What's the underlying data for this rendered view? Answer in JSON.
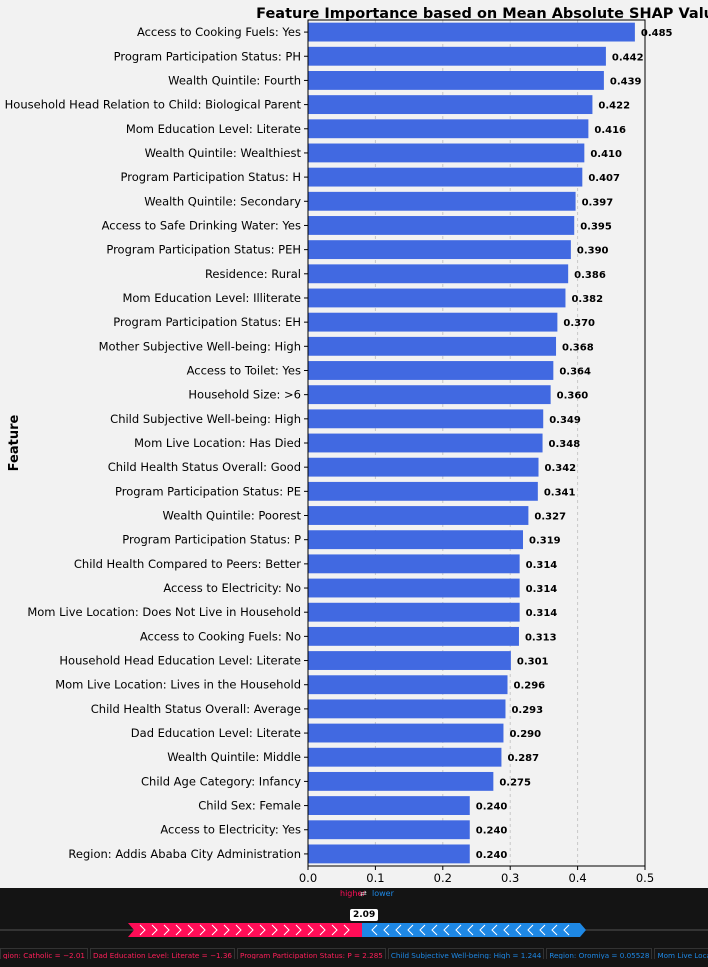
{
  "chart_data": {
    "type": "bar",
    "orientation": "horizontal",
    "title": "Feature Importance based on Mean Absolute SHAP Value",
    "xlabel": "",
    "ylabel": "Feature",
    "xlim": [
      0,
      0.5
    ],
    "xticks": [
      "0.0",
      "0.1",
      "0.2",
      "0.3",
      "0.4",
      "0.5"
    ],
    "grid": true,
    "bar_color": "#4169e1",
    "categories": [
      "Access to Cooking Fuels: Yes",
      "Program Participation Status: PH",
      "Wealth Quintile: Fourth",
      "Household Head Relation to Child: Biological Parent",
      "Mom Education Level: Literate",
      "Wealth Quintile: Wealthiest",
      "Program Participation Status: H",
      "Wealth Quintile: Secondary",
      "Access to Safe Drinking Water: Yes",
      "Program Participation Status: PEH",
      "Residence: Rural",
      "Mom Education Level: Illiterate",
      "Program Participation Status: EH",
      "Mother Subjective Well-being: High",
      "Access to Toilet: Yes",
      "Household Size: >6",
      "Child Subjective Well-being: High",
      "Mom Live Location: Has Died",
      "Child Health Status Overall: Good",
      "Program Participation Status: PE",
      "Wealth Quintile: Poorest",
      "Program Participation Status: P",
      "Child Health Compared to Peers: Better",
      "Access to Electricity: No",
      "Mom Live Location: Does Not Live in Household",
      "Access to Cooking Fuels: No",
      "Household Head Education Level: Literate",
      "Mom Live Location: Lives in the Household",
      "Child Health Status Overall: Average",
      "Dad Education Level: Literate",
      "Wealth Quintile: Middle",
      "Child Age Category: Infancy",
      "Child Sex: Female",
      "Access to Electricity: Yes",
      "Region: Addis Ababa City Administration"
    ],
    "values": [
      0.485,
      0.442,
      0.439,
      0.422,
      0.416,
      0.41,
      0.407,
      0.397,
      0.395,
      0.39,
      0.386,
      0.382,
      0.37,
      0.368,
      0.364,
      0.36,
      0.349,
      0.348,
      0.342,
      0.341,
      0.327,
      0.319,
      0.314,
      0.314,
      0.314,
      0.313,
      0.301,
      0.296,
      0.293,
      0.29,
      0.287,
      0.275,
      0.24,
      0.24,
      0.24
    ],
    "value_labels": [
      "0.485",
      "0.442",
      "0.439",
      "0.422",
      "0.416",
      "0.410",
      "0.407",
      "0.397",
      "0.395",
      "0.390",
      "0.386",
      "0.382",
      "0.370",
      "0.368",
      "0.364",
      "0.360",
      "0.349",
      "0.348",
      "0.342",
      "0.341",
      "0.327",
      "0.319",
      "0.314",
      "0.314",
      "0.314",
      "0.313",
      "0.301",
      "0.296",
      "0.293",
      "0.290",
      "0.287",
      "0.275",
      "0.240",
      "0.240",
      "0.240"
    ]
  },
  "force_plot": {
    "legend_higher": "higher",
    "legend_arrow": "⇄",
    "legend_lower": "lower",
    "base_value": "2.09",
    "colors": {
      "positive": "#ff0d57",
      "negative": "#1e88e5",
      "background": "#141414"
    },
    "contributions_positive": [
      "gion: Catholic = −2.01",
      "Dad Education Level: Literate = −1.36",
      "Program Participation Status: P = 2.285"
    ],
    "contributions_negative": [
      "Child Subjective Well-being: High = 1.244",
      "Region: Oromiya = 0.05528",
      "Mom Live Location: Does"
    ]
  }
}
